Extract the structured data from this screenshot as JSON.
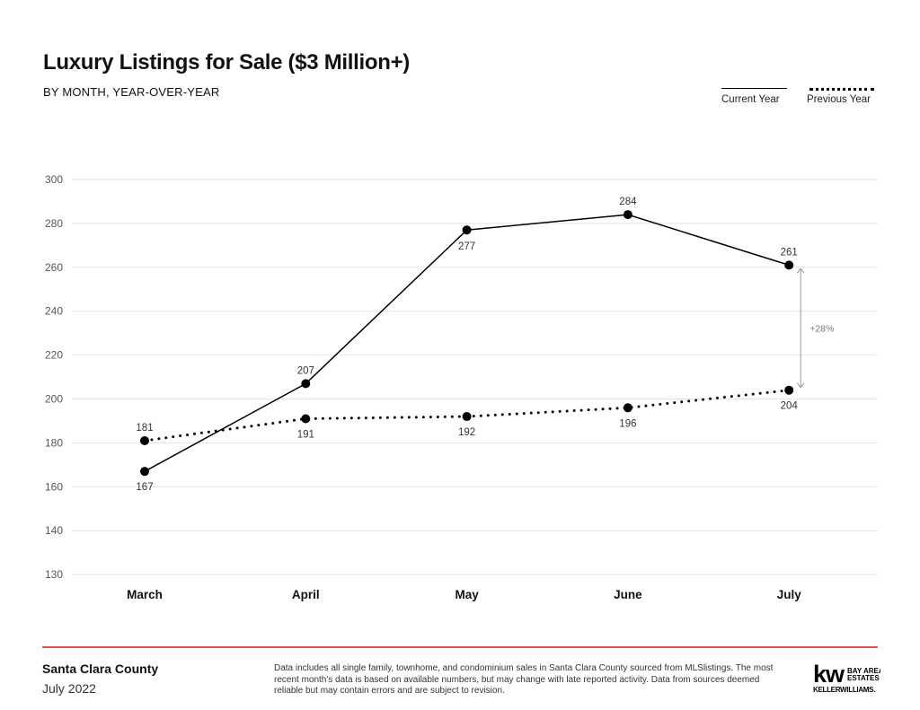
{
  "header": {
    "title": "Luxury Listings for Sale ($3 Million+)",
    "subtitle": "BY MONTH, YEAR-OVER-YEAR"
  },
  "legend": {
    "current": "Current Year",
    "previous": "Previous Year"
  },
  "chart_data": {
    "type": "line",
    "title": "Luxury Listings for Sale ($3 Million+)",
    "subtitle": "BY MONTH, YEAR-OVER-YEAR",
    "categories": [
      "March",
      "April",
      "May",
      "June",
      "July"
    ],
    "series": [
      {
        "name": "Current Year",
        "style": "solid",
        "values": [
          167,
          207,
          277,
          284,
          261
        ]
      },
      {
        "name": "Previous Year",
        "style": "dotted",
        "values": [
          181,
          191,
          192,
          196,
          204
        ]
      }
    ],
    "yticks": [
      130,
      140,
      160,
      180,
      200,
      220,
      240,
      260,
      280,
      300
    ],
    "ylim": [
      130,
      300
    ],
    "grid": true,
    "legend_position": "top-right",
    "annotation": {
      "category": "July",
      "text": "+28%"
    }
  },
  "footer": {
    "county": "Santa Clara County",
    "date": "July 2022",
    "note": "Data includes all single family, townhome, and condominium sales in Santa Clara County sourced from MLSlistings. The most recent month's data is based on available numbers, but may change with late reported activity. Data from sources deemed reliable but may contain errors and are subject to revision."
  },
  "logo": {
    "mark": "kw",
    "line1": "BAY AREA",
    "line2": "ESTATES",
    "line3": "KELLERWILLIAMS."
  },
  "colors": {
    "line": "#000000",
    "grid": "#e2e2e2",
    "axis_text": "#555555",
    "footer_rule": "#d9534f",
    "annotation": "#999999"
  }
}
